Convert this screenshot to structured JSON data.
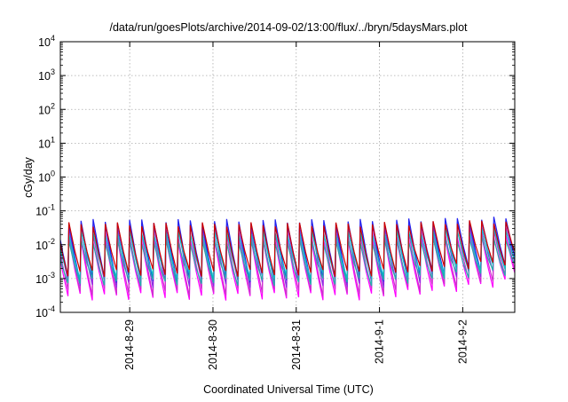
{
  "chart_data": {
    "type": "line",
    "title": "/data/run/goesPlots/archive/2014-09-02/13:00/flux/../bryn/5daysMars.plot",
    "xlabel": "Coordinated Universal Time (UTC)",
    "ylabel": "cGy/day",
    "yscale": "log",
    "ylim": [
      0.0001,
      10000
    ],
    "xlim": [
      "2014-08-28 04:00",
      "2014-09-02 15:00"
    ],
    "grid": true,
    "y_ticks": [
      {
        "value": 0.0001,
        "base": "10",
        "exp": "-4"
      },
      {
        "value": 0.001,
        "base": "10",
        "exp": "-3"
      },
      {
        "value": 0.01,
        "base": "10",
        "exp": "-2"
      },
      {
        "value": 0.1,
        "base": "10",
        "exp": "-1"
      },
      {
        "value": 1,
        "base": "10",
        "exp": "0"
      },
      {
        "value": 10,
        "base": "10",
        "exp": "1"
      },
      {
        "value": 100,
        "base": "10",
        "exp": "2"
      },
      {
        "value": 1000,
        "base": "10",
        "exp": "3"
      },
      {
        "value": 10000,
        "base": "10",
        "exp": "4"
      }
    ],
    "x_ticks": [
      {
        "value": "2014-08-29 00:00",
        "label": "2014-8-29"
      },
      {
        "value": "2014-08-30 00:00",
        "label": "2014-8-30"
      },
      {
        "value": "2014-08-31 00:00",
        "label": "2014-8-31"
      },
      {
        "value": "2014-09-01 00:00",
        "label": "2014-9-1"
      },
      {
        "value": "2014-09-02 00:00",
        "label": "2014-9-2"
      }
    ],
    "series_colors": [
      "#ff00ff",
      "#cc33cc",
      "#8a2be2",
      "#2222ee",
      "#00cccc",
      "#20b2aa",
      "#cc0000"
    ],
    "cycle_hours": 3.5,
    "series": [
      {
        "color": "#ff00ff",
        "base": [
          0.014,
          0.0003,
          0.02,
          0.0009
        ]
      },
      {
        "color": "#cc33cc",
        "base": [
          0.02,
          0.0004,
          0.03,
          0.0012
        ]
      },
      {
        "color": "#8a2be2",
        "base": [
          0.035,
          0.0007,
          0.045,
          0.002
        ]
      },
      {
        "color": "#2222ee",
        "base": [
          0.05,
          0.001,
          0.06,
          0.003
        ]
      },
      {
        "color": "#00cccc",
        "base": [
          0.022,
          0.0012,
          0.03,
          0.0025
        ]
      },
      {
        "color": "#20b2aa",
        "base": [
          0.012,
          0.0008,
          0.016,
          0.0018
        ]
      },
      {
        "color": "#cc0000",
        "base": [
          0.04,
          0.0015,
          0.05,
          0.0035
        ]
      }
    ]
  }
}
